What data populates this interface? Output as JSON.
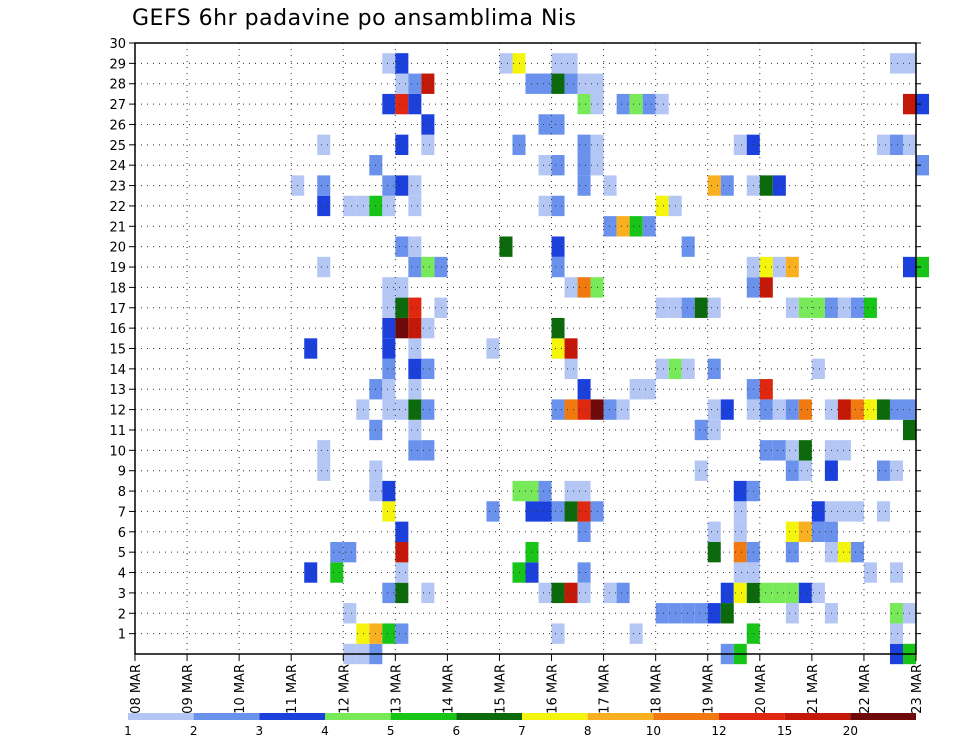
{
  "chart_data": {
    "type": "heatmap",
    "title": "GEFS 6hr padavine po ansamblima Nis",
    "x_tick_labels": [
      "08 MAR",
      "09 MAR",
      "10 MAR",
      "11 MAR",
      "12 MAR",
      "13 MAR",
      "14 MAR",
      "15 MAR",
      "16 MAR",
      "17 MAR",
      "18 MAR",
      "19 MAR",
      "20 MAR",
      "21 MAR",
      "22 MAR",
      "23 MAR"
    ],
    "x_range_days": [
      0,
      15
    ],
    "y_tick_labels": [
      "1",
      "2",
      "3",
      "4",
      "5",
      "6",
      "7",
      "8",
      "9",
      "10",
      "11",
      "12",
      "13",
      "14",
      "15",
      "16",
      "17",
      "18",
      "19",
      "20",
      "21",
      "22",
      "23",
      "24",
      "25",
      "26",
      "27",
      "28",
      "29",
      "30"
    ],
    "y_range": [
      0,
      30
    ],
    "grid": true,
    "colorbar": {
      "levels": [
        "1",
        "2",
        "3",
        "4",
        "5",
        "6",
        "7",
        "8",
        "10",
        "12",
        "15",
        "20"
      ],
      "colors": [
        "#b4c6f4",
        "#6a92ec",
        "#1c40dc",
        "#78ea5a",
        "#18c418",
        "#0c6a0c",
        "#f4f40c",
        "#f8b020",
        "#f07a10",
        "#e02810",
        "#c41808",
        "#6e0a0a"
      ]
    },
    "cells_note": "each cell: [day offset from 08 MAR, member, colour index into colorbar.colors]",
    "cells": [
      [
        4.0,
        0,
        0
      ],
      [
        4.25,
        0,
        0
      ],
      [
        4.5,
        0,
        1
      ],
      [
        11.25,
        0,
        1
      ],
      [
        11.5,
        0,
        4
      ],
      [
        14.5,
        0,
        2
      ],
      [
        14.75,
        0,
        4
      ],
      [
        4.25,
        1,
        6
      ],
      [
        4.5,
        1,
        7
      ],
      [
        4.75,
        1,
        4
      ],
      [
        5.0,
        1,
        1
      ],
      [
        8.0,
        1,
        0
      ],
      [
        9.5,
        1,
        0
      ],
      [
        11.75,
        1,
        4
      ],
      [
        14.5,
        1,
        0
      ],
      [
        4.0,
        2,
        0
      ],
      [
        10.0,
        2,
        1
      ],
      [
        10.25,
        2,
        1
      ],
      [
        10.5,
        2,
        1
      ],
      [
        10.75,
        2,
        1
      ],
      [
        11.0,
        2,
        2
      ],
      [
        11.25,
        2,
        5
      ],
      [
        12.5,
        2,
        0
      ],
      [
        13.25,
        2,
        0
      ],
      [
        14.5,
        2,
        3
      ],
      [
        14.75,
        2,
        0
      ],
      [
        4.75,
        3,
        1
      ],
      [
        5.0,
        3,
        5
      ],
      [
        5.5,
        3,
        0
      ],
      [
        7.75,
        3,
        0
      ],
      [
        8.0,
        3,
        5
      ],
      [
        8.25,
        3,
        10
      ],
      [
        8.5,
        3,
        0
      ],
      [
        9.0,
        3,
        0
      ],
      [
        9.25,
        3,
        1
      ],
      [
        11.25,
        3,
        2
      ],
      [
        11.5,
        3,
        6
      ],
      [
        11.75,
        3,
        5
      ],
      [
        12.0,
        3,
        3
      ],
      [
        12.25,
        3,
        3
      ],
      [
        12.5,
        3,
        3
      ],
      [
        12.75,
        3,
        2
      ],
      [
        13.0,
        3,
        0
      ],
      [
        3.25,
        4,
        2
      ],
      [
        3.75,
        4,
        4
      ],
      [
        5.0,
        4,
        0
      ],
      [
        7.25,
        4,
        4
      ],
      [
        7.5,
        4,
        2
      ],
      [
        8.5,
        4,
        1
      ],
      [
        11.5,
        4,
        0
      ],
      [
        11.75,
        4,
        0
      ],
      [
        14.0,
        4,
        0
      ],
      [
        14.5,
        4,
        0
      ],
      [
        3.75,
        5,
        1
      ],
      [
        4.0,
        5,
        1
      ],
      [
        5.0,
        5,
        10
      ],
      [
        7.5,
        5,
        4
      ],
      [
        11.0,
        5,
        5
      ],
      [
        11.5,
        5,
        8
      ],
      [
        11.75,
        5,
        1
      ],
      [
        12.5,
        5,
        1
      ],
      [
        13.25,
        5,
        0
      ],
      [
        13.5,
        5,
        6
      ],
      [
        13.75,
        5,
        1
      ],
      [
        5.0,
        6,
        2
      ],
      [
        8.5,
        6,
        1
      ],
      [
        11.0,
        6,
        0
      ],
      [
        11.5,
        6,
        0
      ],
      [
        12.5,
        6,
        6
      ],
      [
        12.75,
        6,
        7
      ],
      [
        13.0,
        6,
        1
      ],
      [
        13.25,
        6,
        1
      ],
      [
        4.75,
        7,
        6
      ],
      [
        6.75,
        7,
        1
      ],
      [
        7.5,
        7,
        2
      ],
      [
        7.75,
        7,
        2
      ],
      [
        8.0,
        7,
        1
      ],
      [
        8.25,
        7,
        5
      ],
      [
        8.5,
        7,
        9
      ],
      [
        8.75,
        7,
        1
      ],
      [
        11.5,
        7,
        0
      ],
      [
        13.0,
        7,
        2
      ],
      [
        13.25,
        7,
        0
      ],
      [
        13.5,
        7,
        0
      ],
      [
        13.75,
        7,
        0
      ],
      [
        14.25,
        7,
        0
      ],
      [
        4.5,
        8,
        0
      ],
      [
        4.75,
        8,
        2
      ],
      [
        7.25,
        8,
        3
      ],
      [
        7.5,
        8,
        3
      ],
      [
        7.75,
        8,
        1
      ],
      [
        8.25,
        8,
        0
      ],
      [
        8.5,
        8,
        0
      ],
      [
        11.5,
        8,
        2
      ],
      [
        11.75,
        8,
        1
      ],
      [
        3.5,
        9,
        0
      ],
      [
        4.5,
        9,
        0
      ],
      [
        10.75,
        9,
        0
      ],
      [
        12.5,
        9,
        1
      ],
      [
        12.75,
        9,
        0
      ],
      [
        13.25,
        9,
        2
      ],
      [
        14.25,
        9,
        1
      ],
      [
        14.5,
        9,
        0
      ],
      [
        3.5,
        10,
        0
      ],
      [
        5.25,
        10,
        1
      ],
      [
        5.5,
        10,
        1
      ],
      [
        12.0,
        10,
        1
      ],
      [
        12.25,
        10,
        1
      ],
      [
        12.5,
        10,
        0
      ],
      [
        12.75,
        10,
        5
      ],
      [
        13.25,
        10,
        0
      ],
      [
        13.5,
        10,
        0
      ],
      [
        4.5,
        11,
        1
      ],
      [
        5.25,
        11,
        0
      ],
      [
        10.75,
        11,
        1
      ],
      [
        11.0,
        11,
        0
      ],
      [
        14.75,
        11,
        5
      ],
      [
        4.25,
        12,
        0
      ],
      [
        4.75,
        12,
        0
      ],
      [
        5.0,
        12,
        0
      ],
      [
        5.25,
        12,
        5
      ],
      [
        5.5,
        12,
        1
      ],
      [
        8.0,
        12,
        1
      ],
      [
        8.25,
        12,
        8
      ],
      [
        8.5,
        12,
        9
      ],
      [
        8.75,
        12,
        11
      ],
      [
        9.0,
        12,
        1
      ],
      [
        9.25,
        12,
        0
      ],
      [
        11.0,
        12,
        0
      ],
      [
        11.25,
        12,
        2
      ],
      [
        11.75,
        12,
        0
      ],
      [
        12.0,
        12,
        1
      ],
      [
        12.25,
        12,
        0
      ],
      [
        12.5,
        12,
        1
      ],
      [
        12.75,
        12,
        8
      ],
      [
        13.25,
        12,
        0
      ],
      [
        13.5,
        12,
        10
      ],
      [
        13.75,
        12,
        8
      ],
      [
        14.0,
        12,
        6
      ],
      [
        14.25,
        12,
        5
      ],
      [
        14.5,
        12,
        1
      ],
      [
        14.75,
        12,
        1
      ],
      [
        4.5,
        13,
        1
      ],
      [
        4.75,
        13,
        0
      ],
      [
        5.25,
        13,
        0
      ],
      [
        8.5,
        13,
        2
      ],
      [
        9.5,
        13,
        0
      ],
      [
        9.75,
        13,
        0
      ],
      [
        11.75,
        13,
        1
      ],
      [
        12.0,
        13,
        9
      ],
      [
        4.75,
        14,
        1
      ],
      [
        5.25,
        14,
        2
      ],
      [
        5.5,
        14,
        1
      ],
      [
        8.25,
        14,
        0
      ],
      [
        10.0,
        14,
        0
      ],
      [
        10.25,
        14,
        3
      ],
      [
        10.5,
        14,
        0
      ],
      [
        11.0,
        14,
        1
      ],
      [
        13.0,
        14,
        0
      ],
      [
        3.25,
        15,
        2
      ],
      [
        4.75,
        15,
        2
      ],
      [
        5.25,
        15,
        0
      ],
      [
        6.75,
        15,
        0
      ],
      [
        8.0,
        15,
        6
      ],
      [
        8.25,
        15,
        10
      ],
      [
        4.75,
        16,
        2
      ],
      [
        5.0,
        16,
        11
      ],
      [
        5.25,
        16,
        10
      ],
      [
        5.5,
        16,
        0
      ],
      [
        8.0,
        16,
        5
      ],
      [
        4.75,
        17,
        0
      ],
      [
        5.0,
        17,
        5
      ],
      [
        5.25,
        17,
        9
      ],
      [
        5.75,
        17,
        0
      ],
      [
        10.0,
        17,
        0
      ],
      [
        10.25,
        17,
        0
      ],
      [
        10.5,
        17,
        1
      ],
      [
        10.75,
        17,
        5
      ],
      [
        11.0,
        17,
        0
      ],
      [
        12.5,
        17,
        0
      ],
      [
        12.75,
        17,
        3
      ],
      [
        13.0,
        17,
        3
      ],
      [
        13.25,
        17,
        1
      ],
      [
        13.5,
        17,
        0
      ],
      [
        13.75,
        17,
        1
      ],
      [
        14.0,
        17,
        4
      ],
      [
        4.75,
        18,
        0
      ],
      [
        5.0,
        18,
        0
      ],
      [
        8.25,
        18,
        0
      ],
      [
        8.5,
        18,
        8
      ],
      [
        8.75,
        18,
        3
      ],
      [
        11.75,
        18,
        1
      ],
      [
        12.0,
        18,
        10
      ],
      [
        3.5,
        19,
        0
      ],
      [
        5.25,
        19,
        1
      ],
      [
        5.5,
        19,
        3
      ],
      [
        5.75,
        19,
        1
      ],
      [
        8.0,
        19,
        1
      ],
      [
        11.75,
        19,
        0
      ],
      [
        12.0,
        19,
        6
      ],
      [
        12.25,
        19,
        0
      ],
      [
        12.5,
        19,
        7
      ],
      [
        14.75,
        19,
        2
      ],
      [
        15.0,
        19,
        4
      ],
      [
        5.0,
        20,
        1
      ],
      [
        5.25,
        20,
        0
      ],
      [
        7.0,
        20,
        5
      ],
      [
        8.0,
        20,
        2
      ],
      [
        10.5,
        20,
        1
      ],
      [
        9.0,
        21,
        1
      ],
      [
        9.25,
        21,
        7
      ],
      [
        9.5,
        21,
        4
      ],
      [
        9.75,
        21,
        1
      ],
      [
        4.0,
        22,
        0
      ],
      [
        4.25,
        22,
        0
      ],
      [
        4.5,
        22,
        4
      ],
      [
        4.75,
        22,
        0
      ],
      [
        3.5,
        22,
        2
      ],
      [
        5.25,
        22,
        0
      ],
      [
        7.75,
        22,
        0
      ],
      [
        8.0,
        22,
        1
      ],
      [
        10.0,
        22,
        6
      ],
      [
        10.25,
        22,
        0
      ],
      [
        3.0,
        23,
        0
      ],
      [
        3.5,
        23,
        1
      ],
      [
        4.75,
        23,
        1
      ],
      [
        5.0,
        23,
        2
      ],
      [
        5.25,
        23,
        0
      ],
      [
        8.5,
        23,
        1
      ],
      [
        9.0,
        23,
        0
      ],
      [
        11.0,
        23,
        7
      ],
      [
        11.25,
        23,
        1
      ],
      [
        11.75,
        23,
        0
      ],
      [
        12.0,
        23,
        5
      ],
      [
        12.25,
        23,
        2
      ],
      [
        4.5,
        24,
        1
      ],
      [
        7.75,
        24,
        0
      ],
      [
        8.0,
        24,
        1
      ],
      [
        8.5,
        24,
        1
      ],
      [
        8.75,
        24,
        0
      ],
      [
        15.0,
        24,
        1
      ],
      [
        3.5,
        25,
        0
      ],
      [
        5.0,
        25,
        2
      ],
      [
        5.5,
        25,
        0
      ],
      [
        7.25,
        25,
        1
      ],
      [
        8.5,
        25,
        1
      ],
      [
        8.75,
        25,
        0
      ],
      [
        11.5,
        25,
        0
      ],
      [
        11.75,
        25,
        2
      ],
      [
        14.25,
        25,
        0
      ],
      [
        14.5,
        25,
        1
      ],
      [
        14.75,
        25,
        0
      ],
      [
        5.5,
        26,
        2
      ],
      [
        7.75,
        26,
        1
      ],
      [
        8.0,
        26,
        1
      ],
      [
        4.75,
        27,
        2
      ],
      [
        5.0,
        27,
        9
      ],
      [
        5.25,
        27,
        2
      ],
      [
        8.5,
        27,
        3
      ],
      [
        8.75,
        27,
        0
      ],
      [
        9.25,
        27,
        1
      ],
      [
        9.5,
        27,
        3
      ],
      [
        9.75,
        27,
        1
      ],
      [
        10.0,
        27,
        0
      ],
      [
        14.75,
        27,
        10
      ],
      [
        15.0,
        27,
        2
      ],
      [
        5.0,
        28,
        0
      ],
      [
        5.25,
        28,
        1
      ],
      [
        5.5,
        28,
        10
      ],
      [
        7.5,
        28,
        1
      ],
      [
        7.75,
        28,
        1
      ],
      [
        8.0,
        28,
        5
      ],
      [
        8.25,
        28,
        1
      ],
      [
        8.5,
        28,
        0
      ],
      [
        8.75,
        28,
        0
      ],
      [
        4.75,
        29,
        0
      ],
      [
        5.0,
        29,
        2
      ],
      [
        7.0,
        29,
        0
      ],
      [
        7.25,
        29,
        6
      ],
      [
        8.0,
        29,
        0
      ],
      [
        8.25,
        29,
        0
      ],
      [
        14.5,
        29,
        0
      ],
      [
        14.75,
        29,
        0
      ]
    ]
  }
}
